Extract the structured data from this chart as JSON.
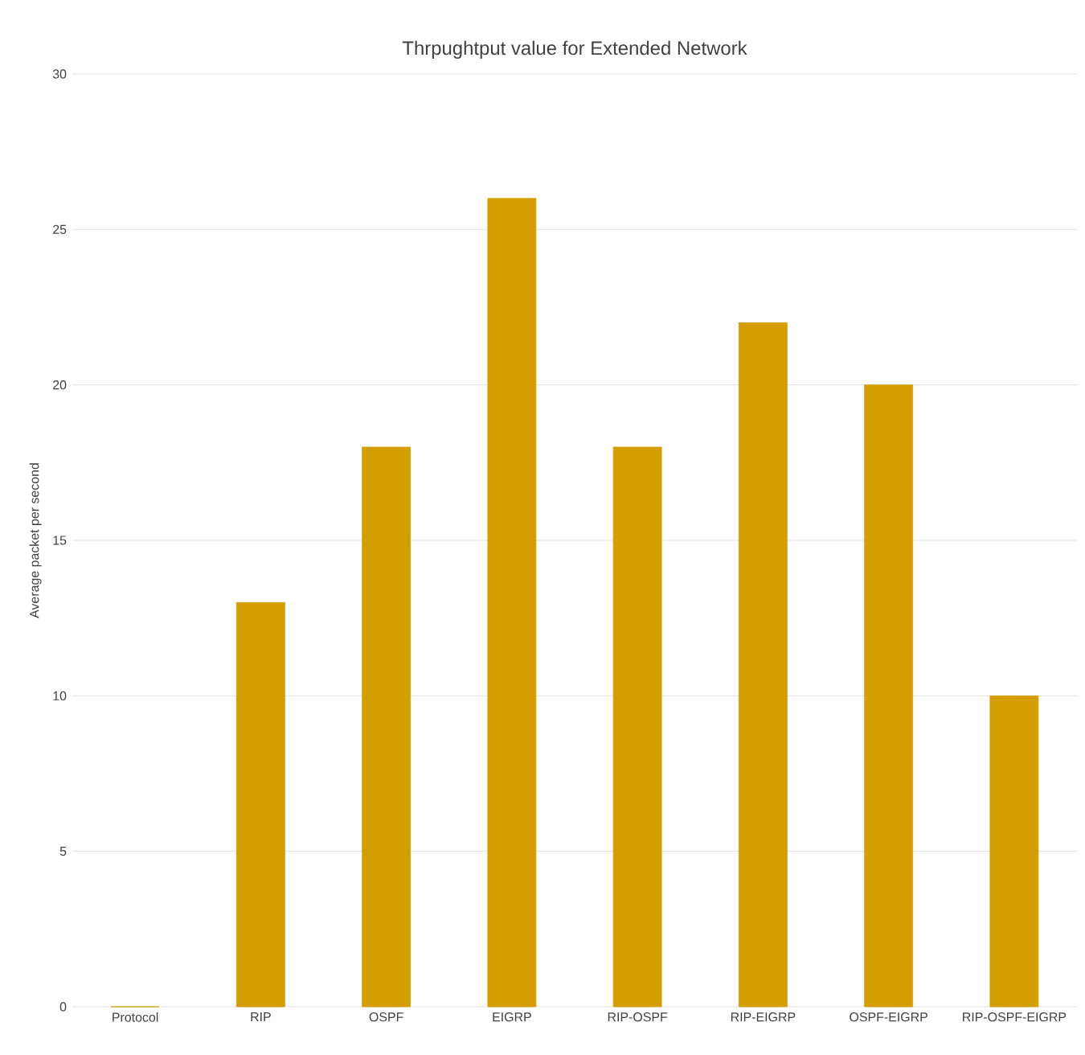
{
  "chart_data": {
    "type": "bar",
    "title": "Thrpughtput value for Extended Network",
    "ylabel": "Average packet per second",
    "categories": [
      "Protocol",
      "RIP",
      "OSPF",
      "EIGRP",
      "RIP-OSPF",
      "RIP-EIGRP",
      "OSPF-EIGRP",
      "RIP-OSPF-EIGRP"
    ],
    "values": [
      0,
      13,
      18,
      26,
      18,
      22,
      20,
      10
    ],
    "color": "#d49e00",
    "ylim": [
      0,
      30
    ],
    "yticks": [
      0,
      5,
      10,
      15,
      20,
      25,
      30
    ],
    "grid": "y"
  }
}
